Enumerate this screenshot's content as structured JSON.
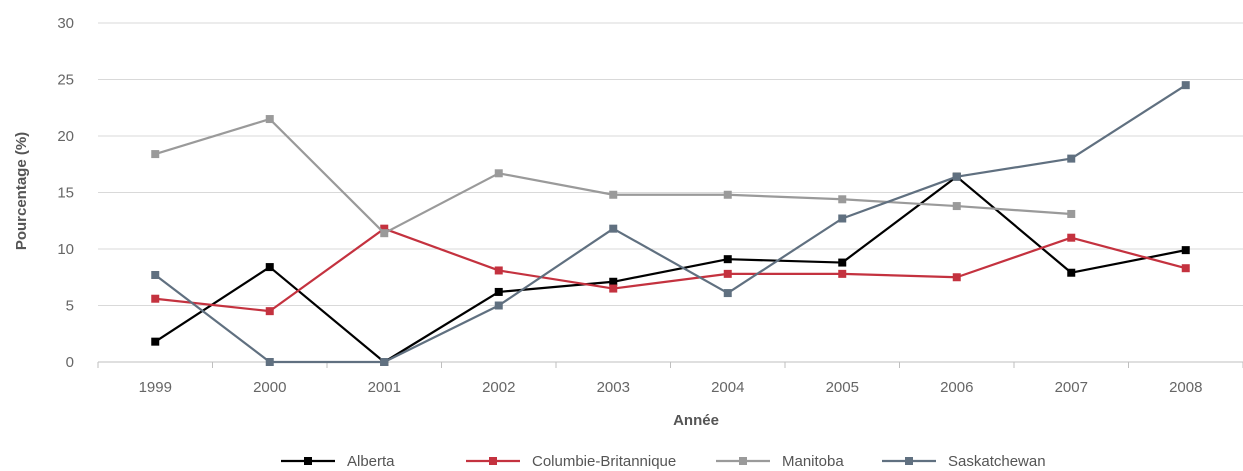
{
  "chart_data": {
    "type": "line",
    "title": "",
    "xlabel": "Année",
    "ylabel": "Pourcentage (%)",
    "ylim": [
      0,
      30
    ],
    "yticks": [
      0,
      5,
      10,
      15,
      20,
      25,
      30
    ],
    "grid": true,
    "legend_position": "bottom",
    "categories": [
      "1999",
      "2000",
      "2001",
      "2002",
      "2003",
      "2004",
      "2005",
      "2006",
      "2007",
      "2008"
    ],
    "series": [
      {
        "name": "Alberta",
        "color": "#000000",
        "values": [
          1.8,
          8.4,
          0.0,
          6.2,
          7.1,
          9.1,
          8.8,
          16.4,
          7.9,
          9.9
        ]
      },
      {
        "name": "Columbie-Britannique",
        "color": "#c4323f",
        "values": [
          5.6,
          4.5,
          11.8,
          8.1,
          6.5,
          7.8,
          7.8,
          7.5,
          11.0,
          8.3
        ]
      },
      {
        "name": "Manitoba",
        "color": "#9a9a9a",
        "values": [
          18.4,
          21.5,
          11.4,
          16.7,
          14.8,
          14.8,
          14.4,
          13.8,
          13.1,
          null
        ]
      },
      {
        "name": "Saskatchewan",
        "color": "#607080",
        "values": [
          7.7,
          0.0,
          0.0,
          5.0,
          11.8,
          6.1,
          12.7,
          16.4,
          18.0,
          24.5
        ]
      }
    ]
  }
}
